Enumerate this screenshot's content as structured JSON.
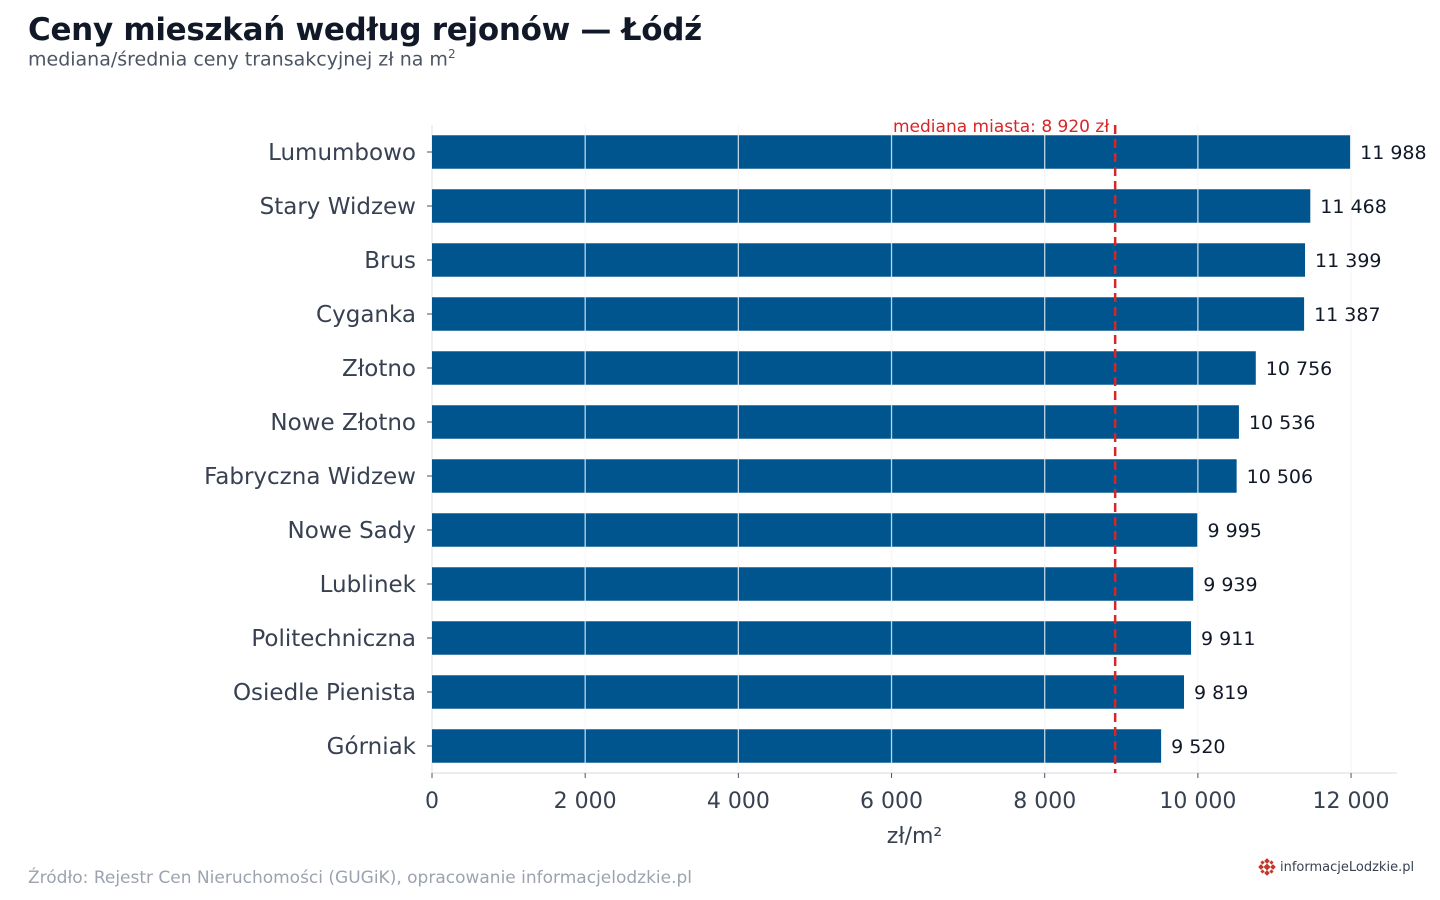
{
  "header": {
    "title": "Ceny mieszkań według rejonów — Łódź",
    "subtitle_main": "mediana/średnia ceny transakcyjnej zł na m",
    "subtitle_sup": "2"
  },
  "chart_data": {
    "type": "bar",
    "orientation": "horizontal",
    "categories": [
      "Lumumbowo",
      "Stary Widzew",
      "Brus",
      "Cyganka",
      "Złotno",
      "Nowe Złotno",
      "Fabryczna Widzew",
      "Nowe Sady",
      "Lublinek",
      "Politechniczna",
      "Osiedle Pienista",
      "Górniak"
    ],
    "values": [
      11988,
      11468,
      11399,
      11387,
      10756,
      10536,
      10506,
      9995,
      9939,
      9911,
      9819,
      9520
    ],
    "value_labels": [
      "11 988",
      "11 468",
      "11 399",
      "11 387",
      "10 756",
      "10 536",
      "10 506",
      "9 995",
      "9 939",
      "9 911",
      "9 819",
      "9 520"
    ],
    "xlabel": "zł/m²",
    "xlim": [
      0,
      12600
    ],
    "xticks": [
      0,
      2000,
      4000,
      6000,
      8000,
      10000,
      12000
    ],
    "xtick_labels": [
      "0",
      "2 000",
      "4 000",
      "6 000",
      "8 000",
      "10 000",
      "12 000"
    ],
    "grid": true,
    "bar_color": "#00558f",
    "reference_line": {
      "value": 8920,
      "label": "mediana miasta: 8 920 zł",
      "color": "#d62728",
      "style": "dashed"
    }
  },
  "footer": {
    "source": "Źródło: Rejestr Cen Nieruchomości (GUGiK), opracowanie informacjelodzkie.pl",
    "logo_text": "informacjeLodzkie.pl",
    "logo_icon": "logo-icon",
    "logo_color": "#c0392b"
  }
}
